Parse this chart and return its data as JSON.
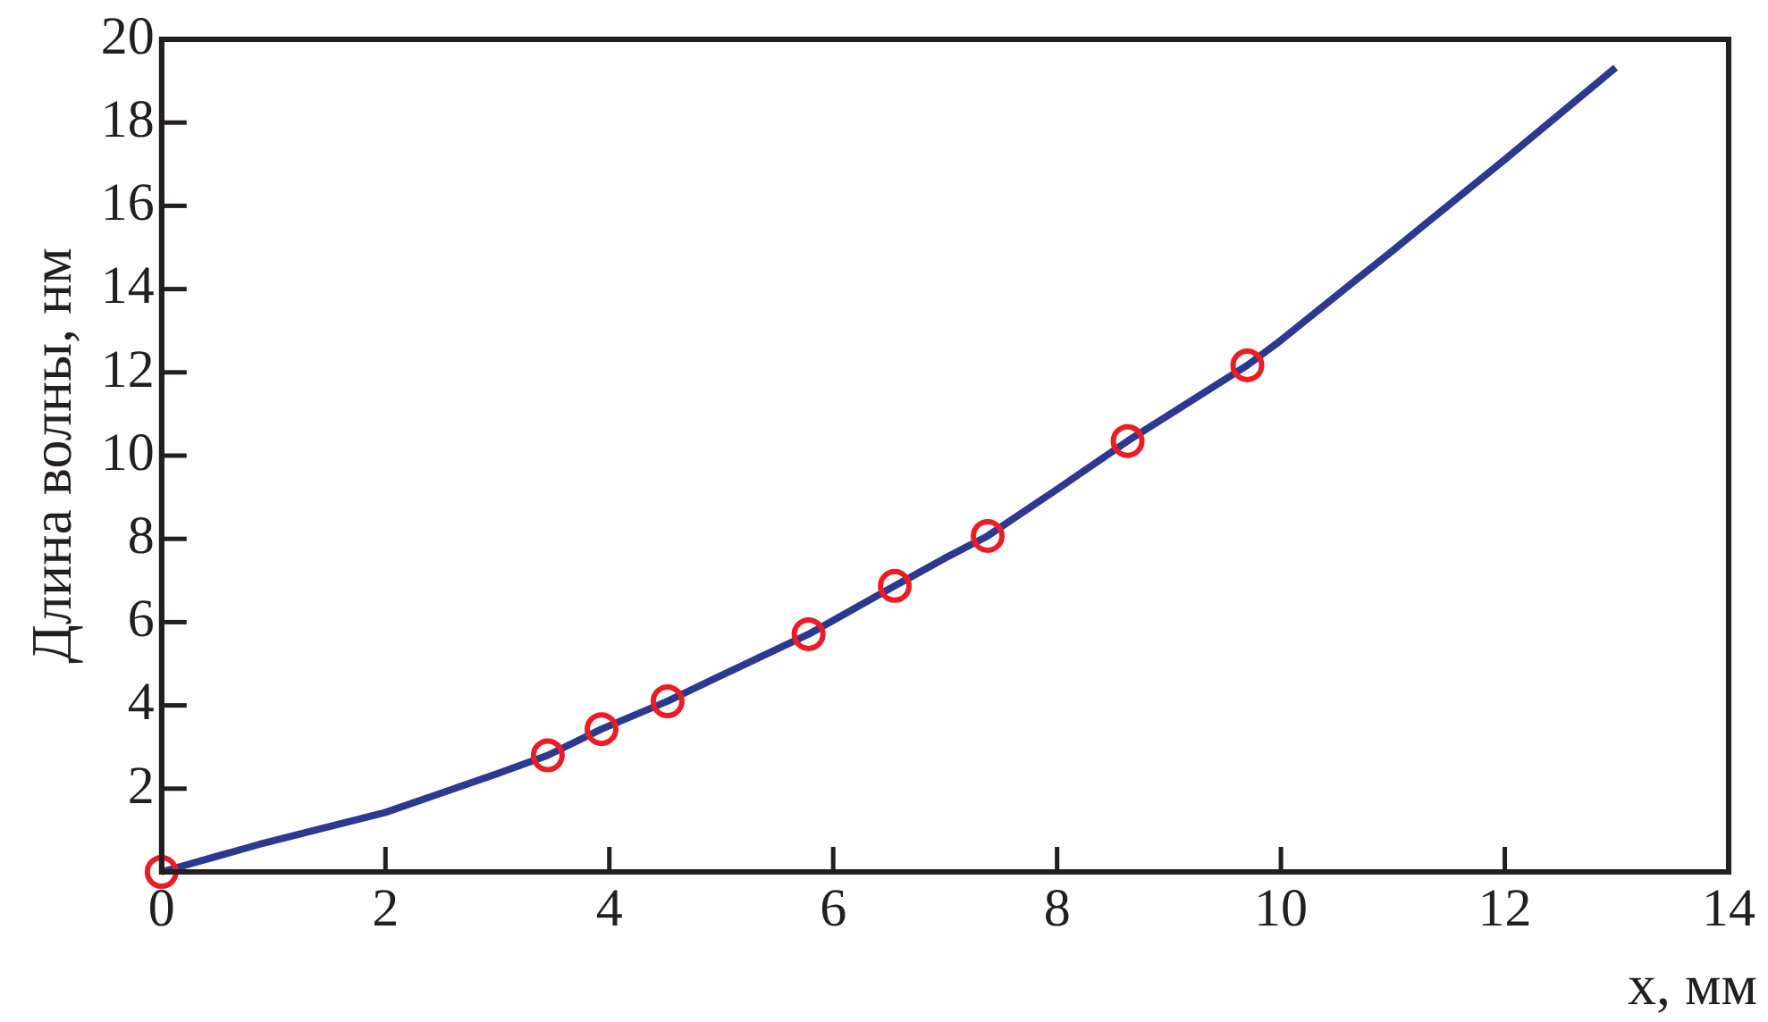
{
  "chart_data": {
    "type": "line",
    "xlabel": "x, мм",
    "ylabel": "Длина волны, нм",
    "xlim": [
      0,
      14
    ],
    "ylim": [
      0,
      20
    ],
    "xticks": [
      0,
      2,
      4,
      6,
      8,
      10,
      12,
      14
    ],
    "yticks": [
      2,
      4,
      6,
      8,
      10,
      12,
      14,
      16,
      18,
      20
    ],
    "grid": false,
    "legend": false,
    "series": [
      {
        "color": "#2b3990",
        "marker": "none",
        "x": [
          0,
          0.87,
          2,
          3,
          3.45,
          3.93,
          4.52,
          5,
          5.78,
          6.55,
          7,
          7.38,
          8,
          8.63,
          9,
          9.7,
          10,
          11,
          12,
          12.99
        ],
        "values": [
          0,
          0.66,
          1.43,
          2.36,
          2.8,
          3.43,
          4.1,
          4.72,
          5.71,
          6.87,
          7.54,
          8.07,
          9.19,
          10.35,
          10.98,
          12.17,
          12.77,
          14.93,
          17.11,
          19.32
        ]
      },
      {
        "type": "scatter",
        "color": "#ed1c24",
        "marker": "circle",
        "x": [
          0,
          3.45,
          3.93,
          4.52,
          5.78,
          6.55,
          7.38,
          8.63,
          9.7
        ],
        "values": [
          0,
          2.8,
          3.43,
          4.1,
          5.71,
          6.87,
          8.07,
          10.35,
          12.17
        ]
      }
    ]
  }
}
